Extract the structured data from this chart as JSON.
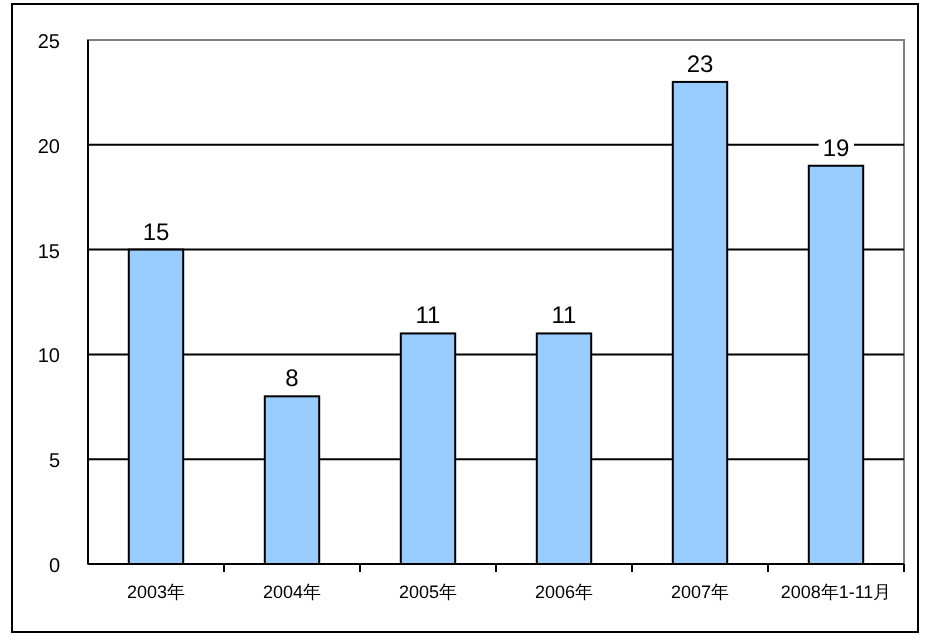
{
  "chart_data": {
    "type": "bar",
    "categories": [
      "2003年",
      "2004年",
      "2005年",
      "2006年",
      "2007年",
      "2008年1-11月"
    ],
    "values": [
      15,
      8,
      11,
      11,
      23,
      19
    ],
    "color": "#99ccff",
    "ylim": [
      0,
      25
    ],
    "yticks": [
      0,
      5,
      10,
      15,
      20,
      25
    ],
    "grid": "y",
    "data_labels": true
  }
}
